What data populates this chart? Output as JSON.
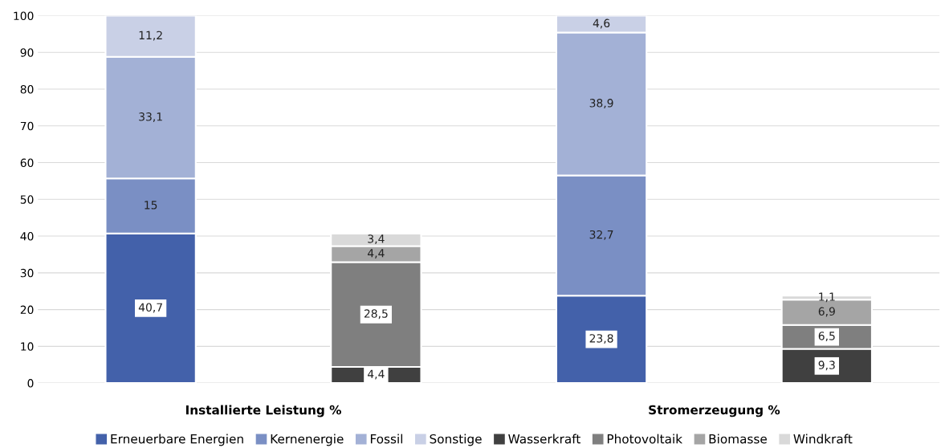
{
  "chart_data": {
    "type": "bar",
    "stacked": true,
    "categories": [
      null,
      null,
      null,
      null
    ],
    "series": [
      {
        "name": "Erneuerbare Energien",
        "color": "#4361aa",
        "values": [
          40.7,
          null,
          23.8,
          null
        ],
        "value_labels": [
          "40,7",
          null,
          "23,8",
          null
        ]
      },
      {
        "name": "Kernenergie",
        "color": "#7a8fc4",
        "values": [
          15,
          null,
          32.7,
          null
        ],
        "value_labels": [
          "15",
          null,
          "32,7",
          null
        ]
      },
      {
        "name": "Fossil",
        "color": "#a3b1d6",
        "values": [
          33.1,
          null,
          38.9,
          null
        ],
        "value_labels": [
          "33,1",
          null,
          "38,9",
          null
        ]
      },
      {
        "name": "Sonstige",
        "color": "#c9d0e6",
        "values": [
          11.2,
          null,
          4.6,
          null
        ],
        "value_labels": [
          "11,2",
          null,
          "4,6",
          null
        ]
      },
      {
        "name": "Wasserkraft",
        "color": "#404040",
        "values": [
          null,
          4.4,
          null,
          9.3
        ],
        "value_labels": [
          null,
          "4,4",
          null,
          "9,3"
        ]
      },
      {
        "name": "Photovoltaik",
        "color": "#7f7f7f",
        "values": [
          null,
          28.5,
          null,
          6.5
        ],
        "value_labels": [
          null,
          "28,5",
          null,
          "6,5"
        ]
      },
      {
        "name": "Biomasse",
        "color": "#a5a5a5",
        "values": [
          null,
          4.4,
          null,
          6.9
        ],
        "value_labels": [
          null,
          "4,4",
          null,
          "6,9"
        ]
      },
      {
        "name": "Windkraft",
        "color": "#d9d9d9",
        "values": [
          null,
          3.4,
          null,
          1.1
        ],
        "value_labels": [
          null,
          "3,4",
          null,
          "1,1"
        ]
      }
    ],
    "ylim": [
      0,
      100
    ],
    "yticks": [
      0,
      10,
      20,
      30,
      40,
      50,
      60,
      70,
      80,
      90,
      100
    ],
    "grid": "y",
    "legend": "bottom",
    "annotations": [
      "Installierte Leistung %",
      "Stromerzeugung %"
    ]
  }
}
